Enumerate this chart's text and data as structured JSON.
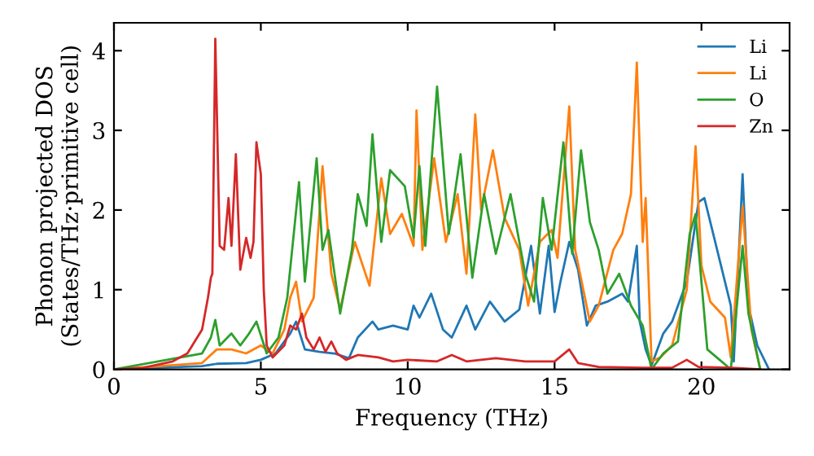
{
  "chart_data": {
    "type": "line",
    "xlabel": "Frequency (THz)",
    "ylabel": "Phonon projected DOS\n(States/THz·primitive cell)",
    "xlim": [
      0,
      23
    ],
    "ylim": [
      0,
      4.35
    ],
    "xticks": [
      0,
      5,
      10,
      15,
      20
    ],
    "yticks": [
      0,
      1,
      2,
      3,
      4
    ],
    "grid": false,
    "legend": "top right",
    "marker": "none",
    "line_style": "solid",
    "series": [
      {
        "name": "Li",
        "color": "#1f77b4",
        "x": [
          0,
          3,
          3.5,
          4.5,
          5,
          5.5,
          6,
          6.2,
          6.5,
          7,
          7.5,
          8,
          8.3,
          8.8,
          9.0,
          9.5,
          10.0,
          10.2,
          10.4,
          10.8,
          11.2,
          11.5,
          12,
          12.3,
          12.8,
          13.3,
          13.8,
          14.2,
          14.5,
          14.8,
          15.0,
          15.2,
          15.5,
          15.8,
          16.1,
          16.4,
          16.8,
          17.3,
          17.5,
          17.8,
          17.9,
          18.1,
          18.3,
          18.7,
          19.0,
          19.5,
          19.9,
          20.1,
          20.5,
          21.0,
          21.1,
          21.4,
          21.6,
          21.9,
          22.3
        ],
        "values": [
          0,
          0.04,
          0.07,
          0.08,
          0.12,
          0.2,
          0.45,
          0.6,
          0.25,
          0.22,
          0.2,
          0.14,
          0.4,
          0.6,
          0.5,
          0.55,
          0.5,
          0.8,
          0.65,
          0.95,
          0.5,
          0.4,
          0.8,
          0.5,
          0.85,
          0.6,
          0.75,
          1.55,
          0.7,
          1.55,
          0.72,
          1.1,
          1.6,
          1.25,
          0.55,
          0.8,
          0.85,
          0.95,
          0.85,
          1.55,
          0.6,
          0.25,
          0.05,
          0.45,
          0.6,
          1.1,
          2.1,
          2.15,
          1.55,
          0.8,
          0.1,
          2.45,
          0.8,
          0.3,
          0
        ]
      },
      {
        "name": "Li",
        "color": "#ff7f0e",
        "x": [
          0,
          3,
          3.5,
          4,
          4.5,
          5,
          5.4,
          5.8,
          6.0,
          6.2,
          6.4,
          6.8,
          7.1,
          7.4,
          7.7,
          8.2,
          8.7,
          9.1,
          9.4,
          9.8,
          10.2,
          10.3,
          10.5,
          10.9,
          11.3,
          11.7,
          12.0,
          12.3,
          12.5,
          12.9,
          13.3,
          13.8,
          14.1,
          14.5,
          14.9,
          15.1,
          15.5,
          15.7,
          16.2,
          16.5,
          17.0,
          17.3,
          17.6,
          17.8,
          18.0,
          18.1,
          18.3,
          18.6,
          19.0,
          19.5,
          19.8,
          20.0,
          20.3,
          20.8,
          21.0,
          21.4,
          21.7,
          22
        ],
        "values": [
          0,
          0.08,
          0.25,
          0.25,
          0.2,
          0.3,
          0.2,
          0.5,
          0.9,
          1.1,
          0.6,
          0.9,
          2.55,
          1.2,
          0.75,
          1.6,
          1.05,
          2.4,
          1.7,
          1.95,
          1.55,
          3.25,
          1.5,
          2.65,
          1.6,
          2.2,
          1.2,
          3.2,
          2.0,
          2.75,
          1.9,
          1.5,
          0.8,
          1.6,
          1.75,
          1.4,
          3.3,
          1.5,
          0.6,
          0.8,
          1.5,
          1.7,
          2.2,
          3.85,
          1.6,
          2.15,
          0.1,
          0.15,
          0.3,
          1.0,
          2.8,
          1.3,
          0.85,
          0.65,
          0.15,
          2.05,
          0.5,
          0
        ]
      },
      {
        "name": "O",
        "color": "#2ca02c",
        "x": [
          0,
          3,
          3.3,
          3.45,
          3.6,
          4.0,
          4.3,
          4.6,
          4.85,
          5.2,
          5.6,
          5.9,
          6.3,
          6.5,
          6.9,
          7.1,
          7.3,
          7.7,
          8.1,
          8.3,
          8.6,
          8.8,
          9.1,
          9.4,
          9.9,
          10.2,
          10.4,
          10.6,
          11.0,
          11.4,
          11.8,
          12.2,
          12.6,
          13.0,
          13.5,
          14.0,
          14.3,
          14.6,
          14.9,
          15.3,
          15.6,
          15.9,
          16.2,
          16.5,
          16.8,
          17.2,
          17.6,
          18.0,
          18.3,
          18.7,
          19.2,
          19.6,
          19.8,
          20.2,
          21.0,
          21.4,
          21.6,
          22
        ],
        "values": [
          0,
          0.2,
          0.4,
          0.62,
          0.3,
          0.45,
          0.3,
          0.45,
          0.6,
          0.2,
          0.4,
          0.9,
          2.35,
          1.1,
          2.65,
          1.5,
          1.75,
          0.7,
          1.5,
          2.2,
          1.8,
          2.95,
          1.6,
          2.5,
          2.3,
          1.65,
          2.55,
          1.55,
          3.55,
          1.7,
          2.7,
          1.15,
          2.2,
          1.45,
          2.2,
          1.2,
          0.85,
          2.15,
          1.5,
          2.85,
          1.45,
          2.75,
          1.85,
          1.5,
          0.95,
          1.2,
          0.8,
          0.55,
          0.0,
          0.2,
          0.35,
          1.7,
          1.95,
          0.25,
          0.0,
          1.55,
          0.7,
          0
        ]
      },
      {
        "name": "Zn",
        "color": "#d62728",
        "x": [
          0,
          1,
          2,
          2.5,
          3,
          3.2,
          3.3,
          3.35,
          3.45,
          3.6,
          3.75,
          3.9,
          4.0,
          4.15,
          4.3,
          4.5,
          4.65,
          4.75,
          4.85,
          5.0,
          5.1,
          5.2,
          5.4,
          5.8,
          6.0,
          6.2,
          6.4,
          6.55,
          6.8,
          7.0,
          7.2,
          7.4,
          7.6,
          7.9,
          8.3,
          9,
          9.5,
          10,
          11,
          11.5,
          12,
          13,
          14,
          15,
          15.5,
          15.8,
          16.5,
          18,
          19,
          19.5,
          19.9,
          21,
          22
        ],
        "values": [
          0,
          0.02,
          0.1,
          0.2,
          0.5,
          0.9,
          1.15,
          1.2,
          4.15,
          1.55,
          1.5,
          2.15,
          1.55,
          2.7,
          1.25,
          1.65,
          1.4,
          1.6,
          2.85,
          2.45,
          1.0,
          0.3,
          0.15,
          0.3,
          0.55,
          0.5,
          0.7,
          0.4,
          0.25,
          0.4,
          0.22,
          0.35,
          0.2,
          0.12,
          0.18,
          0.15,
          0.1,
          0.12,
          0.1,
          0.18,
          0.1,
          0.14,
          0.1,
          0.1,
          0.25,
          0.08,
          0.03,
          0.02,
          0.02,
          0.12,
          0.03,
          0.02,
          0
        ]
      }
    ]
  }
}
